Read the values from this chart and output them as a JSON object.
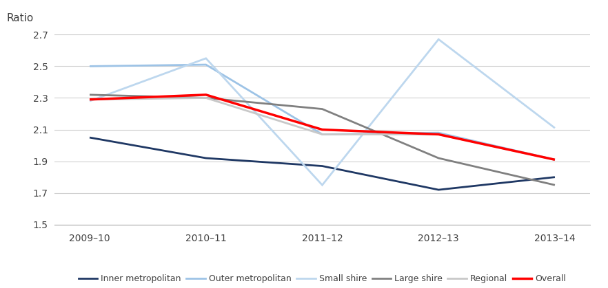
{
  "x_labels": [
    "2009–10",
    "2010–11",
    "2011–12",
    "2012–13",
    "2013–14"
  ],
  "series": {
    "Inner metropolitan": [
      2.05,
      1.92,
      1.87,
      1.72,
      1.8
    ],
    "Outer metropolitan": [
      2.5,
      2.51,
      2.07,
      2.08,
      1.91
    ],
    "Small shire": [
      2.28,
      2.55,
      1.75,
      2.67,
      2.11
    ],
    "Large shire": [
      2.32,
      2.3,
      2.23,
      1.92,
      1.75
    ],
    "Regional": [
      2.29,
      2.3,
      2.07,
      2.07,
      1.91
    ],
    "Overall": [
      2.29,
      2.32,
      2.1,
      2.07,
      1.91
    ]
  },
  "colors": {
    "Inner metropolitan": "#1f3864",
    "Outer metropolitan": "#9dc3e6",
    "Small shire": "#bdd7ee",
    "Large shire": "#808080",
    "Regional": "#c8c8c8",
    "Overall": "#ff0000"
  },
  "linewidths": {
    "Inner metropolitan": 2.0,
    "Outer metropolitan": 2.0,
    "Small shire": 2.0,
    "Large shire": 2.0,
    "Regional": 2.0,
    "Overall": 2.5
  },
  "ylabel": "Ratio",
  "ylim": [
    1.5,
    2.7
  ],
  "yticks": [
    1.5,
    1.7,
    1.9,
    2.1,
    2.3,
    2.5,
    2.7
  ],
  "legend_order": [
    "Inner metropolitan",
    "Outer metropolitan",
    "Small shire",
    "Large shire",
    "Regional",
    "Overall"
  ],
  "background_color": "#ffffff",
  "grid_color": "#d0d0d0",
  "figsize": [
    8.82,
    4.19
  ],
  "dpi": 100
}
